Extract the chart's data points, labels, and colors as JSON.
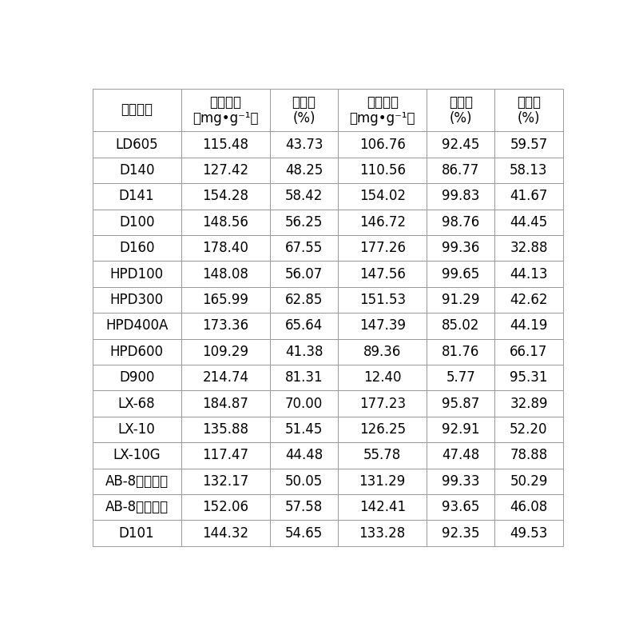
{
  "col_headers_line1": [
    "树脂型号",
    "比吸附量",
    "吸附率",
    "比解吸量",
    "解吸率",
    "损失率"
  ],
  "col_headers_line2": [
    "",
    "（mg•g⁻¹）",
    "(%)",
    "（mg•g⁻¹）",
    "(%)",
    "(%)"
  ],
  "rows": [
    [
      "LD605",
      "115.48",
      "43.73",
      "106.76",
      "92.45",
      "59.57"
    ],
    [
      "D140",
      "127.42",
      "48.25",
      "110.56",
      "86.77",
      "58.13"
    ],
    [
      "D141",
      "154.28",
      "58.42",
      "154.02",
      "99.83",
      "41.67"
    ],
    [
      "D100",
      "148.56",
      "56.25",
      "146.72",
      "98.76",
      "44.45"
    ],
    [
      "D160",
      "178.40",
      "67.55",
      "177.26",
      "99.36",
      "32.88"
    ],
    [
      "HPD100",
      "148.08",
      "56.07",
      "147.56",
      "99.65",
      "44.13"
    ],
    [
      "HPD300",
      "165.99",
      "62.85",
      "151.53",
      "91.29",
      "42.62"
    ],
    [
      "HPD400A",
      "173.36",
      "65.64",
      "147.39",
      "85.02",
      "44.19"
    ],
    [
      "HPD600",
      "109.29",
      "41.38",
      "89.36",
      "81.76",
      "66.17"
    ],
    [
      "D900",
      "214.74",
      "81.31",
      "12.40",
      "5.77",
      "95.31"
    ],
    [
      "LX-68",
      "184.87",
      "70.00",
      "177.23",
      "95.87",
      "32.89"
    ],
    [
      "LX-10",
      "135.88",
      "51.45",
      "126.25",
      "92.91",
      "52.20"
    ],
    [
      "LX-10G",
      "117.47",
      "44.48",
      "55.78",
      "47.48",
      "78.88"
    ],
    [
      "AB-8（西安）",
      "132.17",
      "50.05",
      "131.29",
      "99.33",
      "50.29"
    ],
    [
      "AB-8（天津）",
      "152.06",
      "57.58",
      "142.41",
      "93.65",
      "46.08"
    ],
    [
      "D101",
      "144.32",
      "54.65",
      "133.28",
      "92.35",
      "49.53"
    ]
  ],
  "col_widths_ratio": [
    1.7,
    1.7,
    1.3,
    1.7,
    1.3,
    1.3
  ],
  "background_color": "#ffffff",
  "border_color": "#999999",
  "text_color": "#000000",
  "font_size": 12,
  "header_font_size": 12
}
